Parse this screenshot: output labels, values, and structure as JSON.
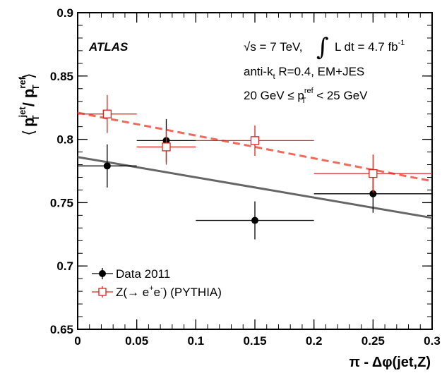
{
  "chart_data": {
    "type": "scatter",
    "experiment_label": "ATLAS",
    "annotations": {
      "energy": "√s = 7 TeV,",
      "lumi_prefix": "L dt = 4.7 fb",
      "lumi_exp": "-1",
      "algo_prefix": "anti-k",
      "algo_sub": "t",
      "algo_suffix": " R=0.4, EM+JES",
      "range_prefix": "20 GeV ≤ p",
      "range_sup": "ref",
      "range_sub": "T",
      "range_suffix": " < 25 GeV"
    },
    "xlabel": "π - Δφ(jet,Z)",
    "ylabel": {
      "open": "⟨",
      "p1": "p",
      "sup1": "jet",
      "sub1": "T",
      "slash": " / ",
      "p2": "p",
      "sup2": "ref",
      "sub2": "T",
      "close": "⟩"
    },
    "xlim": [
      0,
      0.3
    ],
    "ylim": [
      0.65,
      0.9
    ],
    "xticks": [
      "0",
      "0.05",
      "0.1",
      "0.15",
      "0.2",
      "0.25",
      "0.3"
    ],
    "yticks": [
      "0.65",
      "0.7",
      "0.75",
      "0.8",
      "0.85",
      "0.9"
    ],
    "series": [
      {
        "name": "Data 2011",
        "color": "#000000",
        "marker": "filled-circle",
        "points": [
          {
            "x": 0.025,
            "y": 0.779,
            "xerr": [
              0.0,
              0.05
            ],
            "yerr": 0.017
          },
          {
            "x": 0.075,
            "y": 0.799,
            "xerr": [
              0.05,
              0.1
            ],
            "yerr": 0.017
          },
          {
            "x": 0.15,
            "y": 0.736,
            "xerr": [
              0.1,
              0.2
            ],
            "yerr": 0.015
          },
          {
            "x": 0.25,
            "y": 0.757,
            "xerr": [
              0.2,
              0.3
            ],
            "yerr": 0.015
          }
        ],
        "fit": {
          "x": [
            0,
            0.3
          ],
          "y": [
            0.786,
            0.738
          ],
          "color": "#666666",
          "style": "solid"
        }
      },
      {
        "name": "Z(→ e",
        "name_sup": "+",
        "name_mid": "e",
        "name_sup2": "-",
        "name_end": ") (PYTHIA)",
        "color": "#e0201b",
        "marker": "open-square",
        "points": [
          {
            "x": 0.025,
            "y": 0.82,
            "xerr": [
              0.0,
              0.05
            ],
            "yerr": 0.015
          },
          {
            "x": 0.075,
            "y": 0.794,
            "xerr": [
              0.05,
              0.1
            ],
            "yerr": 0.014
          },
          {
            "x": 0.15,
            "y": 0.799,
            "xerr": [
              0.1,
              0.2
            ],
            "yerr": 0.012
          },
          {
            "x": 0.25,
            "y": 0.773,
            "xerr": [
              0.2,
              0.3
            ],
            "yerr": 0.015
          }
        ],
        "fit": {
          "x": [
            0,
            0.3
          ],
          "y": [
            0.821,
            0.767
          ],
          "color": "#f06a5c",
          "style": "dashed"
        }
      }
    ],
    "legend_position": "bottom-left",
    "grid": false
  }
}
